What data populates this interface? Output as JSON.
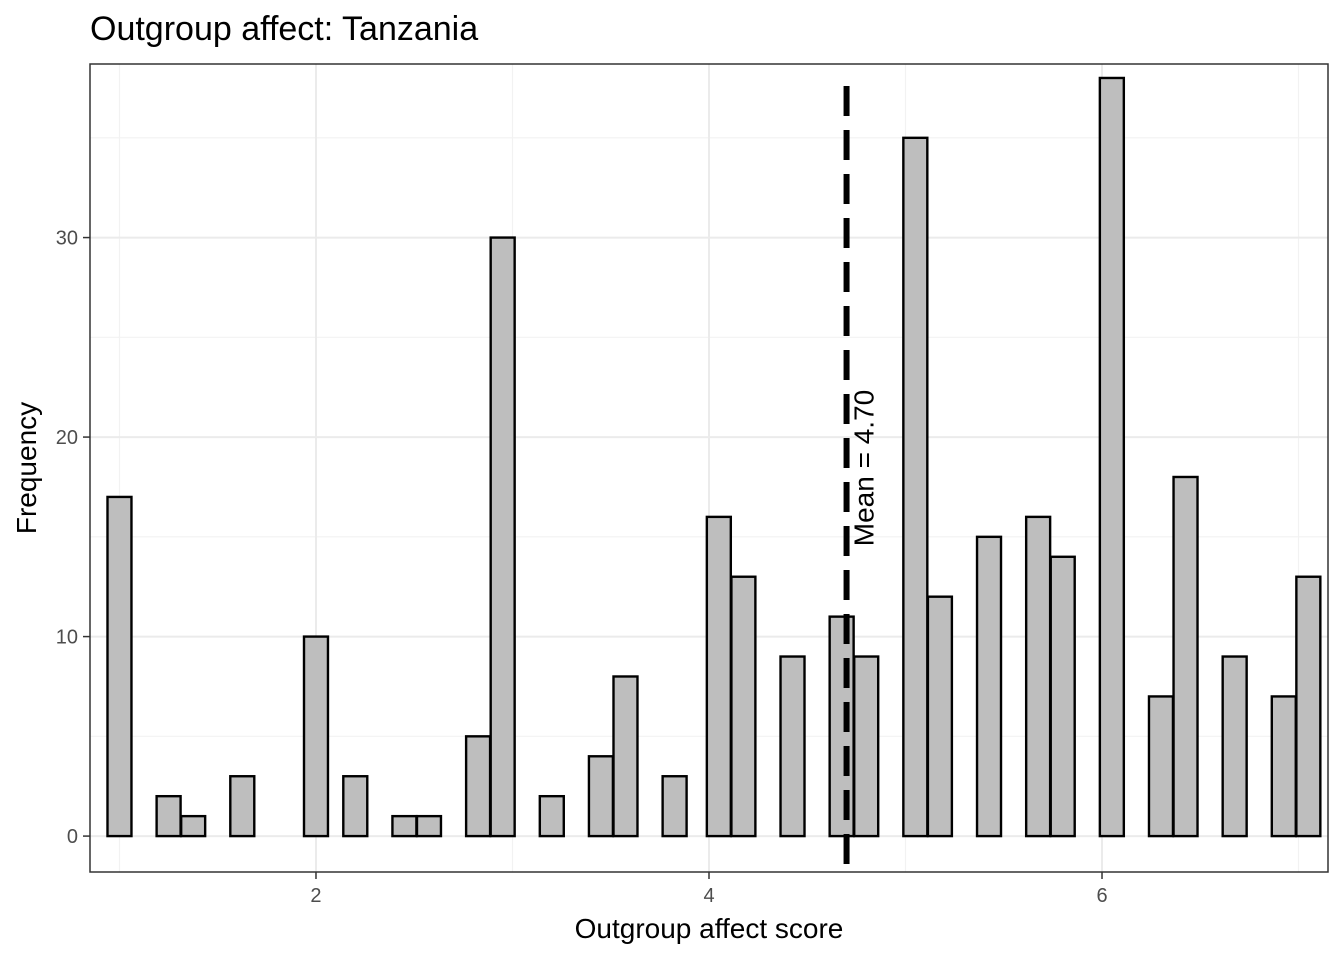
{
  "chart_data": {
    "type": "bar",
    "title": "Outgroup affect: Tanzania",
    "xlabel": "Outgroup affect score",
    "ylabel": "Frequency",
    "xlim": [
      0.85,
      7.15
    ],
    "ylim": [
      -1.8,
      38.7
    ],
    "xticks": [
      2,
      4,
      6
    ],
    "yticks": [
      0,
      10,
      20,
      30
    ],
    "bin_width": 0.122,
    "x": [
      1.0,
      1.25,
      1.375,
      1.625,
      2.0,
      2.2,
      2.45,
      2.575,
      2.825,
      2.95,
      3.2,
      3.45,
      3.575,
      3.825,
      4.05,
      4.175,
      4.425,
      4.675,
      4.8,
      5.05,
      5.175,
      5.425,
      5.675,
      5.8,
      6.05,
      6.3,
      6.425,
      6.675,
      6.925,
      7.05
    ],
    "values": [
      17,
      2,
      1,
      3,
      10,
      3,
      1,
      1,
      5,
      30,
      2,
      4,
      8,
      3,
      16,
      13,
      9,
      11,
      9,
      35,
      12,
      15,
      16,
      14,
      38,
      7,
      18,
      9,
      7,
      13
    ],
    "mean_line": {
      "value": 4.7,
      "label": "Mean = 4.70"
    },
    "grid": true,
    "legend": "none"
  }
}
